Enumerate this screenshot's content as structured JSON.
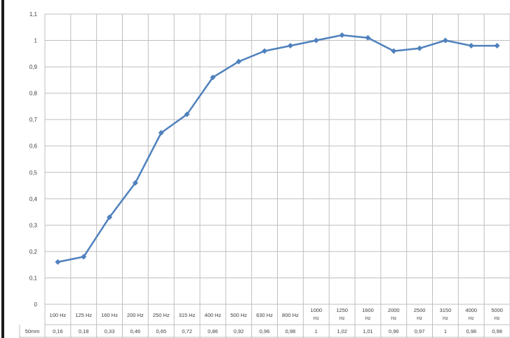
{
  "chart_data": {
    "type": "line",
    "categories": [
      "100 Hz",
      "125 Hz",
      "160 Hz",
      "200 Hz",
      "250 Hz",
      "315 Hz",
      "400 Hz",
      "500 Hz",
      "630 Hz",
      "800 Hz",
      "1000 Hz",
      "1250 Hz",
      "1600 Hz",
      "2000 Hz",
      "2500 Hz",
      "3150 Hz",
      "4000 Hz",
      "5000 Hz"
    ],
    "series": [
      {
        "name": "50mm",
        "values": [
          0.16,
          0.18,
          0.33,
          0.46,
          0.65,
          0.72,
          0.86,
          0.92,
          0.96,
          0.98,
          1,
          1.02,
          1.01,
          0.96,
          0.97,
          1,
          0.98,
          0.98
        ],
        "value_labels": [
          "0,16",
          "0,18",
          "0,33",
          "0,46",
          "0,65",
          "0,72",
          "0,86",
          "0,92",
          "0,96",
          "0,98",
          "1",
          "1,02",
          "1,01",
          "0,96",
          "0,97",
          "1",
          "0,98",
          "0,98"
        ],
        "color": "#4f81bd"
      }
    ],
    "y_ticks": [
      "0",
      "0,1",
      "0,2",
      "0,3",
      "0,4",
      "0,5",
      "0,6",
      "0,7",
      "0,8",
      "0,9",
      "1",
      "1,1"
    ],
    "ylim": [
      0,
      1.1
    ],
    "grid": true,
    "data_table": true,
    "title": "",
    "xlabel": "",
    "ylabel": ""
  }
}
